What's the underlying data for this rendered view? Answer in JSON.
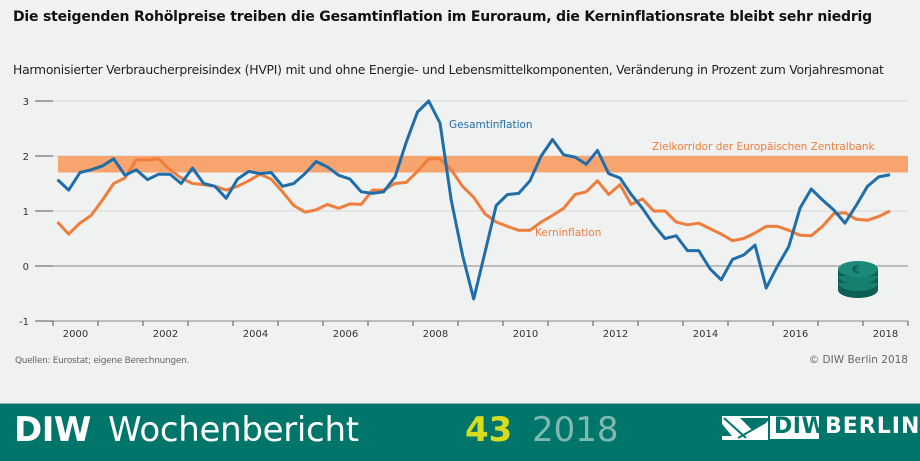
{
  "header": {
    "title": "Die steigenden Rohölpreise treiben die Gesamtinflation im Euroraum, die Kerninflationsrate bleibt sehr niedrig",
    "subtitle": "Harmonisierter Verbraucherpreisindex (HVPI) mit und ohne Energie- und Lebensmittelkomponenten, Veränderung in Prozent zum Vorjahresmonat"
  },
  "footnotes": {
    "source": "Quellen: Eurostat; eigene Berechnungen.",
    "copyright": "© DIW Berlin 2018"
  },
  "footer": {
    "brand_bold": "DIW",
    "brand_name": "Wochenbericht",
    "issue": "43",
    "year": "2018",
    "logo_box": "DIW",
    "logo_city": "BERLIN",
    "bg_color": "#00766a"
  },
  "colors": {
    "gesamt": "#1f6eaa",
    "kern": "#ef7d3c",
    "band": "#f7a46e"
  },
  "chart_data": {
    "type": "line",
    "title": "Die steigenden Rohölpreise treiben die Gesamtinflation im Euroraum, die Kerninflationsrate bleibt sehr niedrig",
    "xlabel": "",
    "ylabel": "Veränderung in Prozent zum Vorjahresmonat",
    "ylim": [
      -1,
      3
    ],
    "yticks": [
      "3",
      "2",
      "1",
      "0",
      "-1"
    ],
    "xlim": [
      2000,
      2018.8
    ],
    "xticks": [
      "2000",
      "2002",
      "2004",
      "2006",
      "2008",
      "2010",
      "2012",
      "2014",
      "2016",
      "2018"
    ],
    "x_start": 2000.1,
    "x_step": 0.25,
    "grid": true,
    "band": {
      "label": "Zielkorridor der Europäischen Zentralbank",
      "from": 1.7,
      "to": 2.0
    },
    "series": [
      {
        "name": "Gesamtinflation",
        "label": "Gesamtinflation",
        "values": [
          1.57,
          1.38,
          1.7,
          1.75,
          1.82,
          1.95,
          1.65,
          1.75,
          1.57,
          1.67,
          1.67,
          1.5,
          1.78,
          1.5,
          1.45,
          1.23,
          1.58,
          1.72,
          1.68,
          1.7,
          1.45,
          1.5,
          1.68,
          1.9,
          1.8,
          1.65,
          1.58,
          1.35,
          1.32,
          1.35,
          1.62,
          2.25,
          2.8,
          3.0,
          2.6,
          1.2,
          0.2,
          -0.6,
          0.25,
          1.1,
          1.3,
          1.32,
          1.55,
          2.0,
          2.3,
          2.02,
          1.98,
          1.85,
          2.1,
          1.68,
          1.6,
          1.3,
          1.05,
          0.75,
          0.5,
          0.55,
          0.28,
          0.28,
          -0.05,
          -0.25,
          0.12,
          0.2,
          0.38,
          -0.4,
          0.0,
          0.35,
          1.05,
          1.4,
          1.2,
          1.02,
          0.78,
          1.1,
          1.45,
          1.62,
          1.66
        ]
      },
      {
        "name": "Kerninflation",
        "label": "Kerninflation",
        "values": [
          0.8,
          0.58,
          0.78,
          0.92,
          1.2,
          1.5,
          1.6,
          1.93,
          1.93,
          1.95,
          1.75,
          1.6,
          1.5,
          1.48,
          1.45,
          1.38,
          1.45,
          1.55,
          1.67,
          1.58,
          1.35,
          1.1,
          0.98,
          1.02,
          1.12,
          1.05,
          1.13,
          1.12,
          1.38,
          1.38,
          1.5,
          1.52,
          1.72,
          1.95,
          1.95,
          1.75,
          1.45,
          1.25,
          0.95,
          0.8,
          0.72,
          0.65,
          0.65,
          0.8,
          0.92,
          1.05,
          1.3,
          1.35,
          1.55,
          1.3,
          1.48,
          1.12,
          1.22,
          1.0,
          1.0,
          0.8,
          0.75,
          0.78,
          0.68,
          0.58,
          0.46,
          0.5,
          0.6,
          0.72,
          0.72,
          0.65,
          0.56,
          0.55,
          0.72,
          0.95,
          0.97,
          0.85,
          0.83,
          0.9,
          1.0
        ]
      }
    ],
    "annotations": [
      "Gesamtinflation",
      "Kerninflation",
      "Zielkorridor der Europäischen Zentralbank"
    ]
  }
}
